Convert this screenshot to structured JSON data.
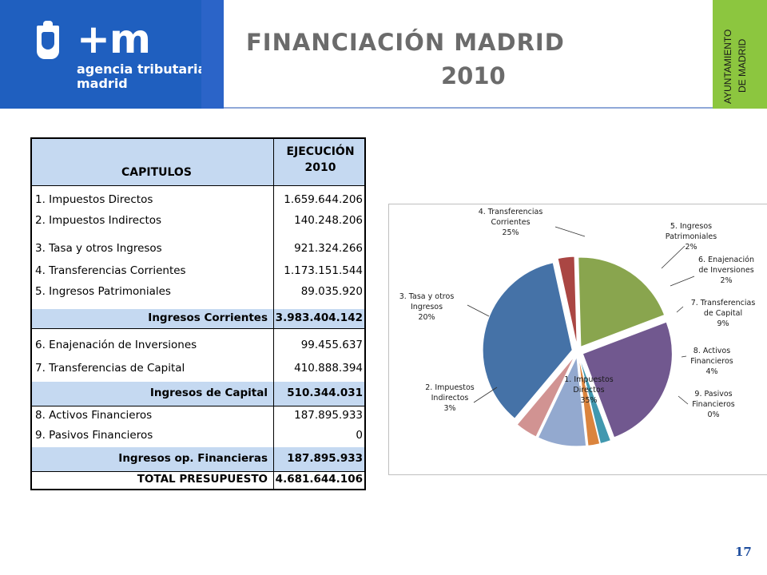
{
  "header": {
    "logo": {
      "symbol": "+m",
      "line1": "agencia tributaria",
      "line2": "madrid"
    },
    "title": "FINANCIACIÓN  MADRID",
    "year": "2010",
    "side_label": {
      "line1": "AYUNTAMIENTO",
      "line2": "DE MADRID"
    }
  },
  "table": {
    "headers": {
      "chapter": "CAPITULOS",
      "execution_line1": "EJECUCIÓN",
      "execution_line2": "2010"
    },
    "rows": [
      {
        "label": "1. Impuestos Directos",
        "value": "1.659.644.206"
      },
      {
        "label": "2. Impuestos Indirectos",
        "value": "140.248.206"
      },
      {
        "label": "3. Tasa y otros Ingresos",
        "value": "921.324.266"
      },
      {
        "label": "4. Transferencias Corrientes",
        "value": "1.173.151.544"
      },
      {
        "label": "5. Ingresos Patrimoniales",
        "value": "89.035.920"
      },
      {
        "label": "Ingresos Corrientes",
        "value": "3.983.404.142"
      },
      {
        "label": "6. Enajenación de Inversiones",
        "value": "99.455.637"
      },
      {
        "label": "7. Transferencias de Capital",
        "value": "410.888.394"
      },
      {
        "label": "Ingresos de Capital",
        "value": "510.344.031"
      },
      {
        "label": "8. Activos Financieros",
        "value": "187.895.933"
      },
      {
        "label": "9. Pasivos Financieros",
        "value": "0"
      },
      {
        "label": "Ingresos op. Financieras",
        "value": "187.895.933"
      },
      {
        "label": "TOTAL PRESUPUESTO",
        "value": "4.681.644.106"
      }
    ]
  },
  "chart_data": {
    "type": "pie",
    "exploded": true,
    "slices": [
      {
        "label_lines": [
          "1. Impuestos",
          "Directos"
        ],
        "pct_label": "35%",
        "value": 1659644206,
        "color": "#4572a7"
      },
      {
        "label_lines": [
          "2. Impuestos",
          "Indirectos"
        ],
        "pct_label": "3%",
        "value": 140248206,
        "color": "#aa4643"
      },
      {
        "label_lines": [
          "3. Tasa y otros",
          "Ingresos"
        ],
        "pct_label": "20%",
        "value": 921324266,
        "color": "#89a54e"
      },
      {
        "label_lines": [
          "4. Transferencias",
          "Corrientes"
        ],
        "pct_label": "25%",
        "value": 1173151544,
        "color": "#71588f"
      },
      {
        "label_lines": [
          "5. Ingresos",
          "Patrimoniales"
        ],
        "pct_label": "2%",
        "value": 89035920,
        "color": "#4198af"
      },
      {
        "label_lines": [
          "6. Enajenación",
          "de Inversiones"
        ],
        "pct_label": "2%",
        "value": 99455637,
        "color": "#db843d"
      },
      {
        "label_lines": [
          "7. Transferencias",
          "de Capital"
        ],
        "pct_label": "9%",
        "value": 410888394,
        "color": "#93a9cf"
      },
      {
        "label_lines": [
          "8. Activos",
          "Financieros"
        ],
        "pct_label": "4%",
        "value": 187895933,
        "color": "#d19392"
      },
      {
        "label_lines": [
          "9. Pasivos",
          "Financieros"
        ],
        "pct_label": "0%",
        "value": 0,
        "color": "#b9cd96"
      }
    ]
  },
  "page_number": "17"
}
